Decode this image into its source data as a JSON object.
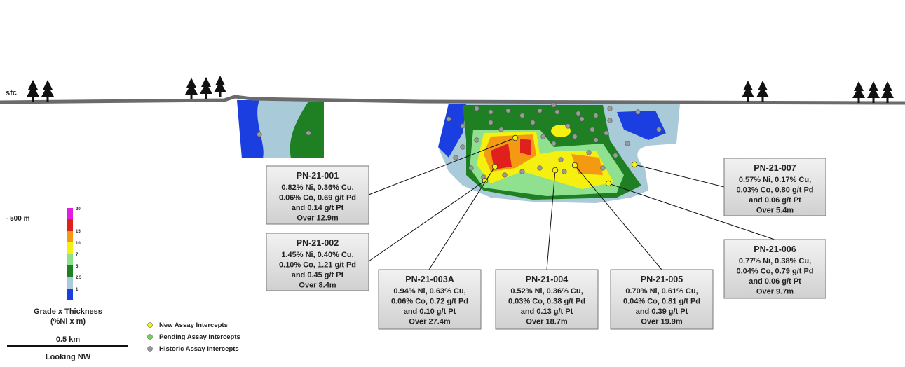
{
  "surface_label": "sfc",
  "depth_label": "- 500 m",
  "grade_legend": {
    "ticks": [
      "20",
      "15",
      "10",
      "7",
      "5",
      "2.5",
      "1"
    ],
    "title": "Grade x Thickness",
    "subtitle": "(%Ni x m)"
  },
  "scale_bar": "0.5 km",
  "view": "Looking NW",
  "point_legend": [
    "New Assay Intercepts",
    "Pending Assay Intercepts",
    "Historic Assay Intercepts"
  ],
  "callouts": [
    {
      "title": "PN-21-001",
      "lines": [
        "0.82% Ni, 0.36% Cu,",
        "0.06% Co, 0.69 g/t Pd",
        "and 0.14 g/t Pt",
        "Over 12.9m"
      ]
    },
    {
      "title": "PN-21-002",
      "lines": [
        "1.45% Ni, 0.40% Cu,",
        "0.10% Co, 1.21 g/t Pd",
        "and 0.45 g/t Pt",
        "Over 8.4m"
      ]
    },
    {
      "title": "PN-21-003A",
      "lines": [
        "0.94% Ni, 0.63% Cu,",
        "0.06% Co, 0.72 g/t Pd",
        "and 0.10 g/t Pt",
        "Over 27.4m"
      ]
    },
    {
      "title": "PN-21-004",
      "lines": [
        "0.52% Ni, 0.36% Cu,",
        "0.03% Co, 0.38 g/t Pd",
        "and 0.13 g/t Pt",
        "Over 18.7m"
      ]
    },
    {
      "title": "PN-21-005",
      "lines": [
        "0.70% Ni, 0.61% Cu,",
        "0.04% Co, 0.81 g/t Pd",
        "and 0.39 g/t Pt",
        "Over 19.9m"
      ]
    },
    {
      "title": "PN-21-007",
      "lines": [
        "0.57% Ni, 0.17% Cu,",
        "0.03% Co, 0.80 g/t Pd",
        "and 0.06 g/t Pt",
        "Over 5.4m"
      ]
    },
    {
      "title": "PN-21-006",
      "lines": [
        "0.77% Ni, 0.38% Cu,",
        "0.04% Co, 0.79 g/t Pd",
        "and 0.06 g/t Pt",
        "Over 9.7m"
      ]
    }
  ]
}
